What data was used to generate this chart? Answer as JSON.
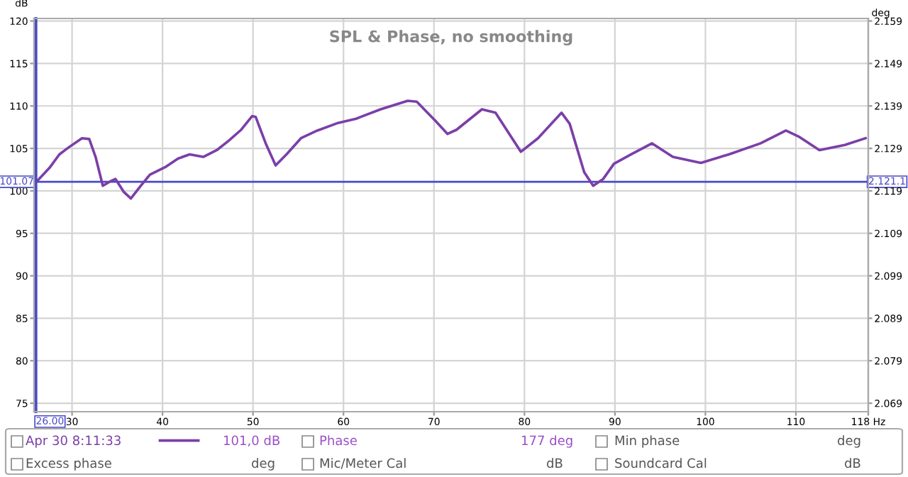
{
  "chart_data": {
    "type": "line",
    "title": "SPL & Phase, no smoothing",
    "ylabel": "dB",
    "y2label": "deg",
    "x": [
      26.0,
      27.5,
      28.6,
      29.6,
      31.1,
      31.9,
      32.6,
      33.4,
      34.2,
      34.8,
      35.7,
      36.5,
      37.6,
      38.6,
      40.3,
      41.7,
      43.0,
      44.5,
      46.0,
      47.3,
      48.7,
      49.9,
      50.3,
      51.4,
      52.5,
      53.7,
      55.3,
      57.1,
      59.4,
      61.4,
      64.1,
      67.1,
      68.1,
      70.2,
      71.5,
      72.5,
      75.3,
      76.8,
      79.6,
      81.5,
      84.1,
      85.0,
      86.6,
      87.6,
      88.7,
      89.9,
      91.8,
      94.1,
      96.4,
      99.5,
      102.6,
      106.1,
      108.9,
      110.3,
      112.6,
      115.4,
      117.7
    ],
    "series": [
      {
        "name": "Apr 30 8:11:33",
        "color": "#7b3fa8",
        "values": [
          101.0,
          102.7,
          104.3,
          105.1,
          106.2,
          106.1,
          104.0,
          100.6,
          101.1,
          101.4,
          99.9,
          99.1,
          100.6,
          101.9,
          102.8,
          103.8,
          104.3,
          104.0,
          104.8,
          105.9,
          107.2,
          108.8,
          108.7,
          105.6,
          103.0,
          104.3,
          106.2,
          107.1,
          108.0,
          108.5,
          109.6,
          110.6,
          110.5,
          108.2,
          106.7,
          107.2,
          109.6,
          109.2,
          104.6,
          106.2,
          109.2,
          107.9,
          102.2,
          100.6,
          101.4,
          103.2,
          104.3,
          105.6,
          104.0,
          103.3,
          104.3,
          105.6,
          107.1,
          106.4,
          104.8,
          105.4,
          106.2
        ]
      }
    ],
    "xlim": [
      25.8,
      118
    ],
    "xticks": [
      30,
      40,
      50,
      60,
      70,
      80,
      90,
      100,
      110,
      {
        "value": 118,
        "label": "118 Hz"
      }
    ],
    "ylim": [
      74,
      120.3
    ],
    "yticks": [
      75,
      80,
      85,
      90,
      95,
      100,
      105,
      110,
      115,
      120
    ],
    "y2lim": [
      2.067,
      2.1596
    ],
    "y2ticks": [
      2.069,
      2.079,
      2.089,
      2.099,
      2.109,
      2.119,
      2.129,
      2.139,
      2.149,
      2.159
    ],
    "ref_lines": [
      {
        "axis": "y",
        "value": 101.07,
        "label": "101.07",
        "color": "#4a4ac8"
      },
      {
        "axis": "x",
        "value": 26,
        "label": "26.00",
        "color": "#4a4ac8"
      }
    ],
    "annotations": [
      "2.121.1",
      "101,0 dB",
      "Phase",
      "177 deg",
      "Min phase",
      "deg",
      "Excess phase",
      "deg",
      "Mic/Meter Cal",
      "dB",
      "Soundcard Cal",
      "dB"
    ],
    "grid": true,
    "legend": "bottom",
    "marker": "none",
    "line_style": "solid"
  }
}
